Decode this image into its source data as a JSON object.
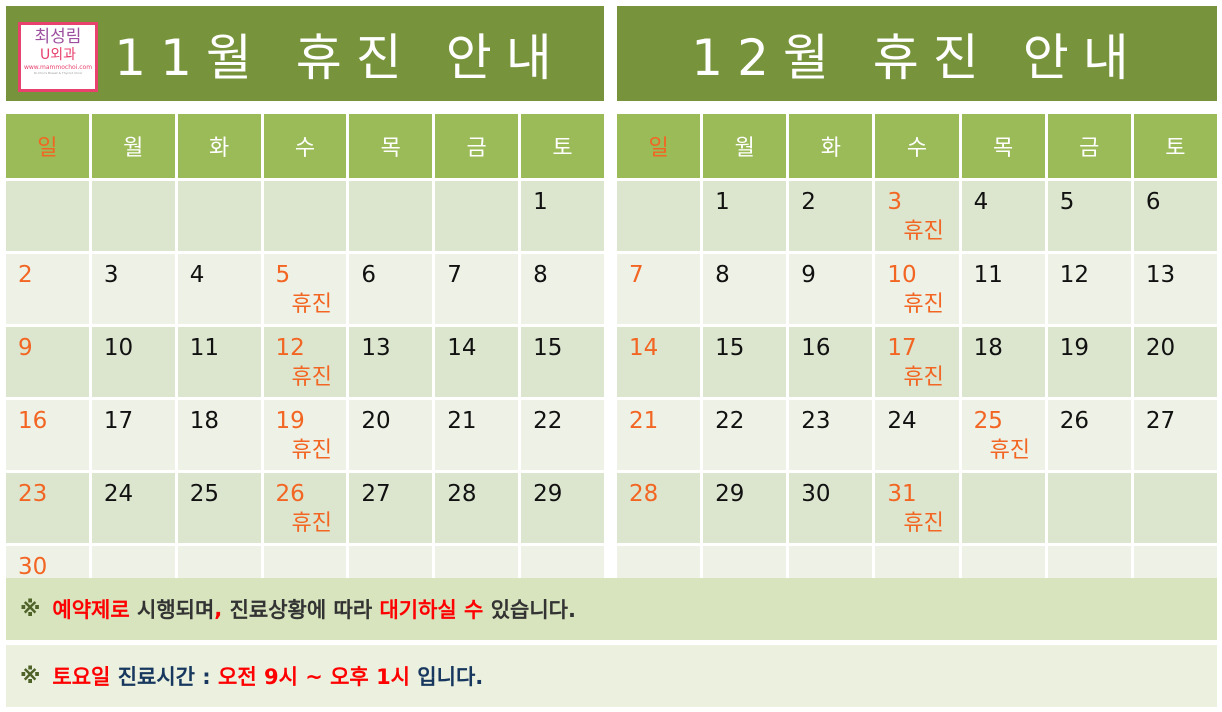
{
  "logo": {
    "name": "최성림",
    "sub": "U외과",
    "url": "www.mammochoi.com",
    "tagline": "Dr.Choi's Breast & Thyroid Clinic"
  },
  "weekdays": [
    "일",
    "월",
    "화",
    "수",
    "목",
    "금",
    "토"
  ],
  "holiday_label": "휴진",
  "colors": {
    "title_bg": "#77933c",
    "header_bg": "#9bbb59",
    "sunday": "#f26522",
    "holiday": "#f26522",
    "emphasis": "#ff0000"
  },
  "calendars": [
    {
      "title": "11월 휴진 안내",
      "weeks": [
        [
          null,
          null,
          null,
          null,
          null,
          null,
          {
            "d": "1"
          }
        ],
        [
          {
            "d": "2"
          },
          {
            "d": "3"
          },
          {
            "d": "4"
          },
          {
            "d": "5",
            "h": true
          },
          {
            "d": "6"
          },
          {
            "d": "7"
          },
          {
            "d": "8"
          }
        ],
        [
          {
            "d": "9"
          },
          {
            "d": "10"
          },
          {
            "d": "11"
          },
          {
            "d": "12",
            "h": true
          },
          {
            "d": "13"
          },
          {
            "d": "14"
          },
          {
            "d": "15"
          }
        ],
        [
          {
            "d": "16"
          },
          {
            "d": "17"
          },
          {
            "d": "18"
          },
          {
            "d": "19",
            "h": true
          },
          {
            "d": "20"
          },
          {
            "d": "21"
          },
          {
            "d": "22"
          }
        ],
        [
          {
            "d": "23"
          },
          {
            "d": "24"
          },
          {
            "d": "25"
          },
          {
            "d": "26",
            "h": true
          },
          {
            "d": "27"
          },
          {
            "d": "28"
          },
          {
            "d": "29"
          }
        ],
        [
          {
            "d": "30"
          },
          null,
          null,
          null,
          null,
          null,
          null
        ]
      ]
    },
    {
      "title": "12월 휴진 안내",
      "weeks": [
        [
          null,
          {
            "d": "1"
          },
          {
            "d": "2"
          },
          {
            "d": "3",
            "h": true
          },
          {
            "d": "4"
          },
          {
            "d": "5"
          },
          {
            "d": "6"
          }
        ],
        [
          {
            "d": "7"
          },
          {
            "d": "8"
          },
          {
            "d": "9"
          },
          {
            "d": "10",
            "h": true
          },
          {
            "d": "11"
          },
          {
            "d": "12"
          },
          {
            "d": "13"
          }
        ],
        [
          {
            "d": "14"
          },
          {
            "d": "15"
          },
          {
            "d": "16"
          },
          {
            "d": "17",
            "h": true
          },
          {
            "d": "18"
          },
          {
            "d": "19"
          },
          {
            "d": "20"
          }
        ],
        [
          {
            "d": "21"
          },
          {
            "d": "22"
          },
          {
            "d": "23"
          },
          {
            "d": "24"
          },
          {
            "d": "25",
            "h": true
          },
          {
            "d": "26"
          },
          {
            "d": "27"
          }
        ],
        [
          {
            "d": "28"
          },
          {
            "d": "29"
          },
          {
            "d": "30"
          },
          {
            "d": "31",
            "h": true
          },
          null,
          null,
          null
        ],
        [
          null,
          null,
          null,
          null,
          null,
          null,
          null
        ]
      ]
    }
  ],
  "notes": [
    {
      "mark": "※",
      "parts": [
        {
          "t": "예약제로",
          "red": true
        },
        {
          "t": " 시행되며"
        },
        {
          "t": ",",
          "red": true
        },
        {
          "t": " 진료상황에 따라 "
        },
        {
          "t": "대기하실 수",
          "red": true
        },
        {
          "t": " 있습니다."
        }
      ]
    },
    {
      "mark": "※",
      "parts": [
        {
          "t": "토요일",
          "red": true
        },
        {
          "t": " 진료시간 : "
        },
        {
          "t": "오전 9시 ~ 오후 1시",
          "red": true
        },
        {
          "t": " 입니다."
        }
      ]
    }
  ]
}
